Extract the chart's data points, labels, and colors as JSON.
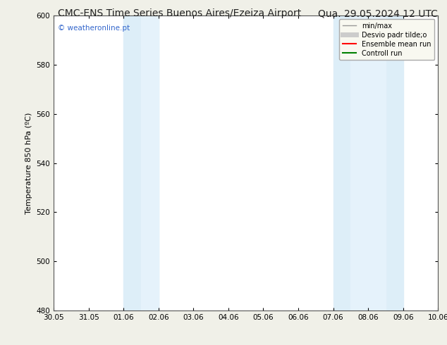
{
  "title_left": "CMC-ENS Time Series Buenos Aires/Ezeiza Airport",
  "title_right": "Qua. 29.05.2024 12 UTC",
  "ylabel": "Temperature 850 hPa (ºC)",
  "watermark": "© weatheronline.pt",
  "watermark_color": "#3366cc",
  "ylim": [
    480,
    600
  ],
  "yticks": [
    480,
    500,
    520,
    540,
    560,
    580,
    600
  ],
  "xtick_labels": [
    "30.05",
    "31.05",
    "01.06",
    "02.06",
    "03.06",
    "04.06",
    "05.06",
    "06.06",
    "07.06",
    "08.06",
    "09.06",
    "10.06"
  ],
  "xlim": [
    0,
    11
  ],
  "shaded_bands": [
    {
      "x_start": 2,
      "x_end": 2.5,
      "color": "#deedf7"
    },
    {
      "x_start": 2.5,
      "x_end": 3,
      "color": "#e8f3fb"
    },
    {
      "x_start": 8,
      "x_end": 8.5,
      "color": "#deedf7"
    },
    {
      "x_start": 8.5,
      "x_end": 9,
      "color": "#e8f3fb"
    },
    {
      "x_start": 9,
      "x_end": 9.5,
      "color": "#deedf7"
    }
  ],
  "legend_items": [
    {
      "label": "min/max",
      "color": "#999999",
      "lw": 1.0,
      "ls": "-"
    },
    {
      "label": "Desvio padr tilde;o",
      "color": "#cccccc",
      "lw": 5,
      "ls": "-"
    },
    {
      "label": "Ensemble mean run",
      "color": "#ff0000",
      "lw": 1.5,
      "ls": "-"
    },
    {
      "label": "Controll run",
      "color": "#008000",
      "lw": 1.5,
      "ls": "-"
    }
  ],
  "bg_color": "#f0f0e8",
  "plot_area_color": "#ffffff",
  "title_fontsize": 10,
  "label_fontsize": 8,
  "tick_fontsize": 7.5
}
